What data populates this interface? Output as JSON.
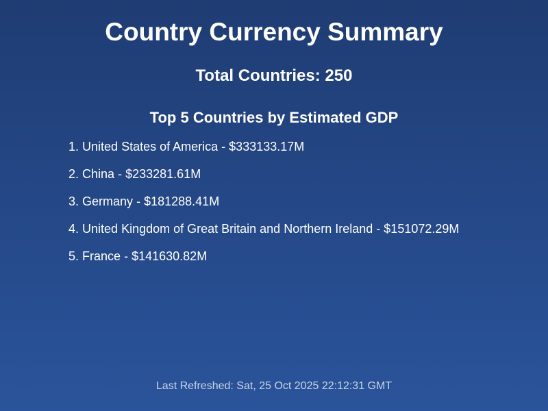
{
  "page": {
    "title": "Country Currency Summary",
    "total_countries_label": "Total Countries:",
    "total_countries_value": "250",
    "section_heading": "Top 5 Countries by Estimated GDP",
    "top_countries": [
      {
        "rank": "1.",
        "name": "United States of America",
        "separator": "-",
        "gdp": "$333133.17M"
      },
      {
        "rank": "2.",
        "name": "China",
        "separator": "-",
        "gdp": "$233281.61M"
      },
      {
        "rank": "3.",
        "name": "Germany",
        "separator": "-",
        "gdp": "$181288.41M"
      },
      {
        "rank": "4.",
        "name": "United Kingdom of Great Britain and Northern Ireland",
        "separator": "-",
        "gdp": "$151072.29M"
      },
      {
        "rank": "5.",
        "name": "France",
        "separator": "-",
        "gdp": "$141630.82M"
      }
    ],
    "footer_label": "Last Refreshed:",
    "footer_timestamp": "Sat, 25 Oct 2025 22:12:31 GMT"
  },
  "colors": {
    "background_top": "#1f3c73",
    "background_bottom": "#2a549b",
    "text": "#ffffff",
    "footer_text": "#c9d4e6"
  }
}
